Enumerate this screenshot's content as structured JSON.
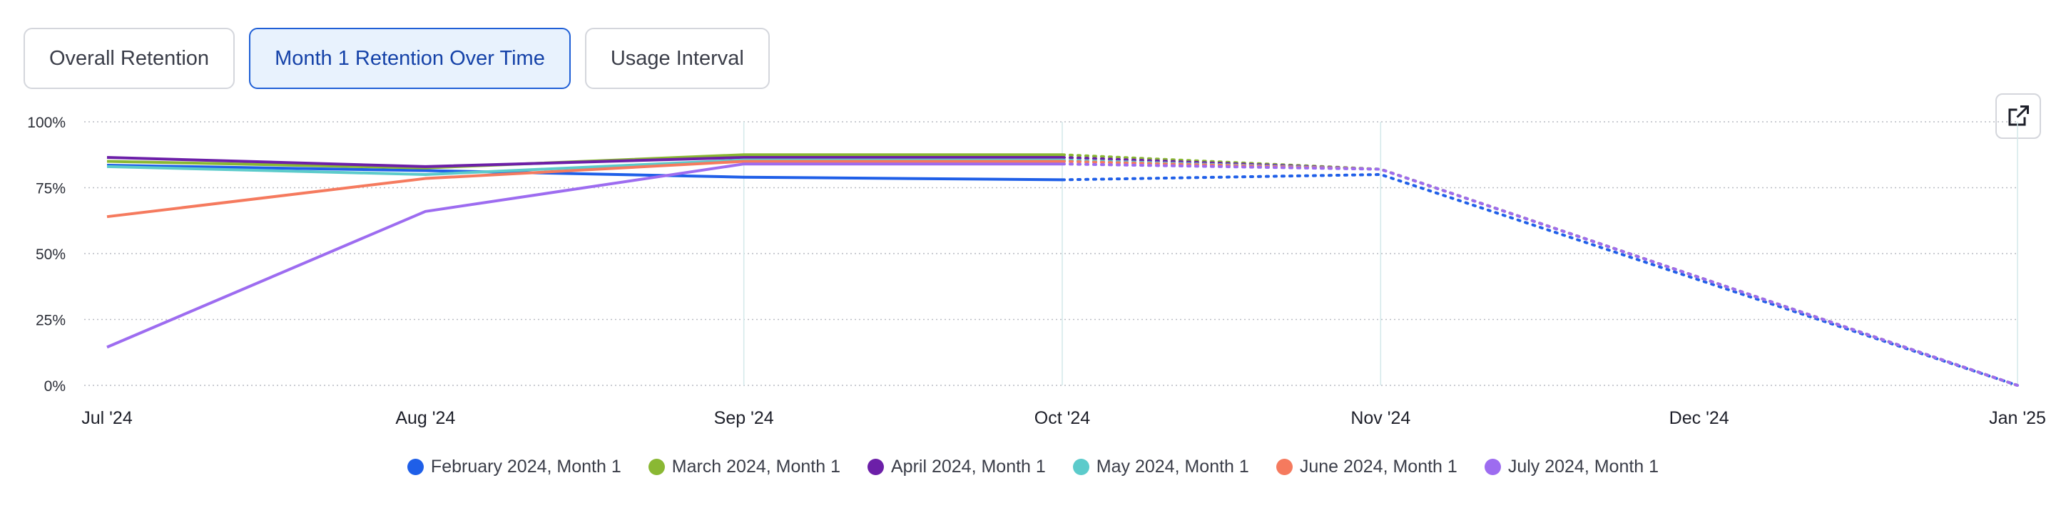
{
  "tabs": [
    {
      "label": "Overall Retention",
      "active": false
    },
    {
      "label": "Month 1 Retention Over Time",
      "active": true
    },
    {
      "label": "Usage Interval",
      "active": false
    }
  ],
  "toolbar": {
    "expand_icon": "external-link-icon"
  },
  "chart_data": {
    "type": "line",
    "x": [
      "Jul '24",
      "Aug '24",
      "Sep '24",
      "Oct '24",
      "Nov '24",
      "Dec '24",
      "Jan '25"
    ],
    "ylim": [
      0,
      100
    ],
    "yticks": [
      "0%",
      "25%",
      "50%",
      "75%",
      "100%"
    ],
    "ytick_values": [
      0,
      25,
      50,
      75,
      100
    ],
    "grid": true,
    "legend_position": "bottom",
    "solid_until_index": 3,
    "series": [
      {
        "name": "February 2024, Month 1",
        "color": "#1f5fe8",
        "values": [
          83.5,
          81.5,
          79,
          78,
          80,
          40,
          0
        ]
      },
      {
        "name": "March 2024, Month 1",
        "color": "#8ab833",
        "values": [
          85,
          82.5,
          87.5,
          87.5,
          82,
          41,
          0
        ]
      },
      {
        "name": "April 2024, Month 1",
        "color": "#6c1fa8",
        "values": [
          86.5,
          83,
          86.5,
          86.5,
          82,
          41,
          0
        ]
      },
      {
        "name": "May 2024, Month 1",
        "color": "#5ccbcb",
        "values": [
          83,
          80,
          85.5,
          85.5,
          82,
          41,
          0
        ]
      },
      {
        "name": "June 2024, Month 1",
        "color": "#f57a5e",
        "values": [
          64,
          78.5,
          85,
          85,
          82,
          41,
          0
        ]
      },
      {
        "name": "July 2024, Month 1",
        "color": "#9d6cf0",
        "values": [
          14.5,
          66,
          84,
          84,
          82,
          41,
          0
        ]
      }
    ]
  }
}
